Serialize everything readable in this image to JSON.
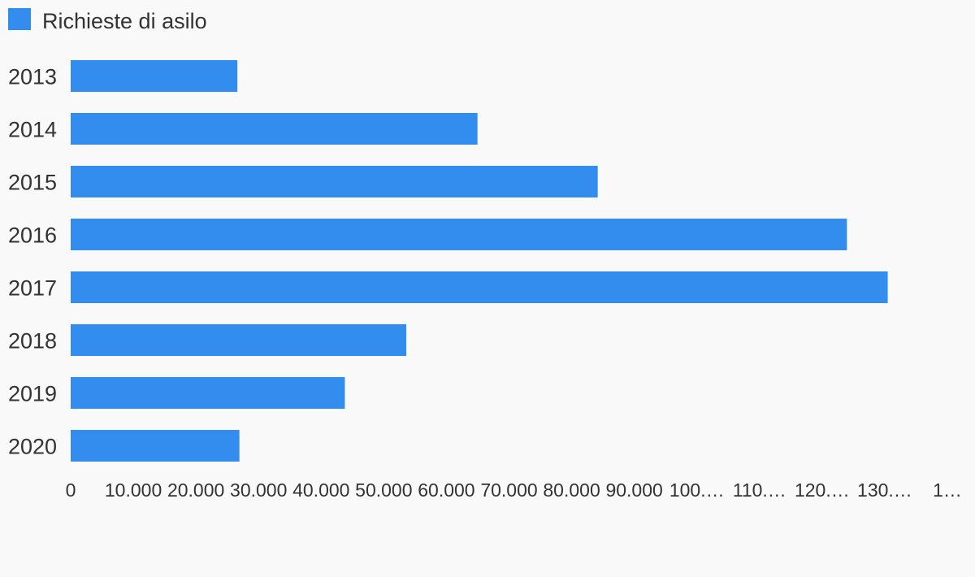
{
  "chart_data": {
    "type": "bar",
    "orientation": "horizontal",
    "categories": [
      "2013",
      "2014",
      "2015",
      "2016",
      "2017",
      "2018",
      "2019",
      "2020"
    ],
    "series": [
      {
        "name": "Richieste di asilo",
        "values": [
          26620,
          64960,
          84165,
          123960,
          130475,
          53595,
          43780,
          26940
        ],
        "color": "#338def"
      }
    ],
    "xlim": [
      0,
      140000
    ],
    "x_ticks": [
      "0",
      "10.000",
      "20.000",
      "30.000",
      "40.000",
      "50.000",
      "60.000",
      "70.000",
      "80.000",
      "90.000",
      "100.…",
      "110.…",
      "120.…",
      "130.…",
      "1…"
    ],
    "legend_position": "top-left",
    "grid": false
  }
}
